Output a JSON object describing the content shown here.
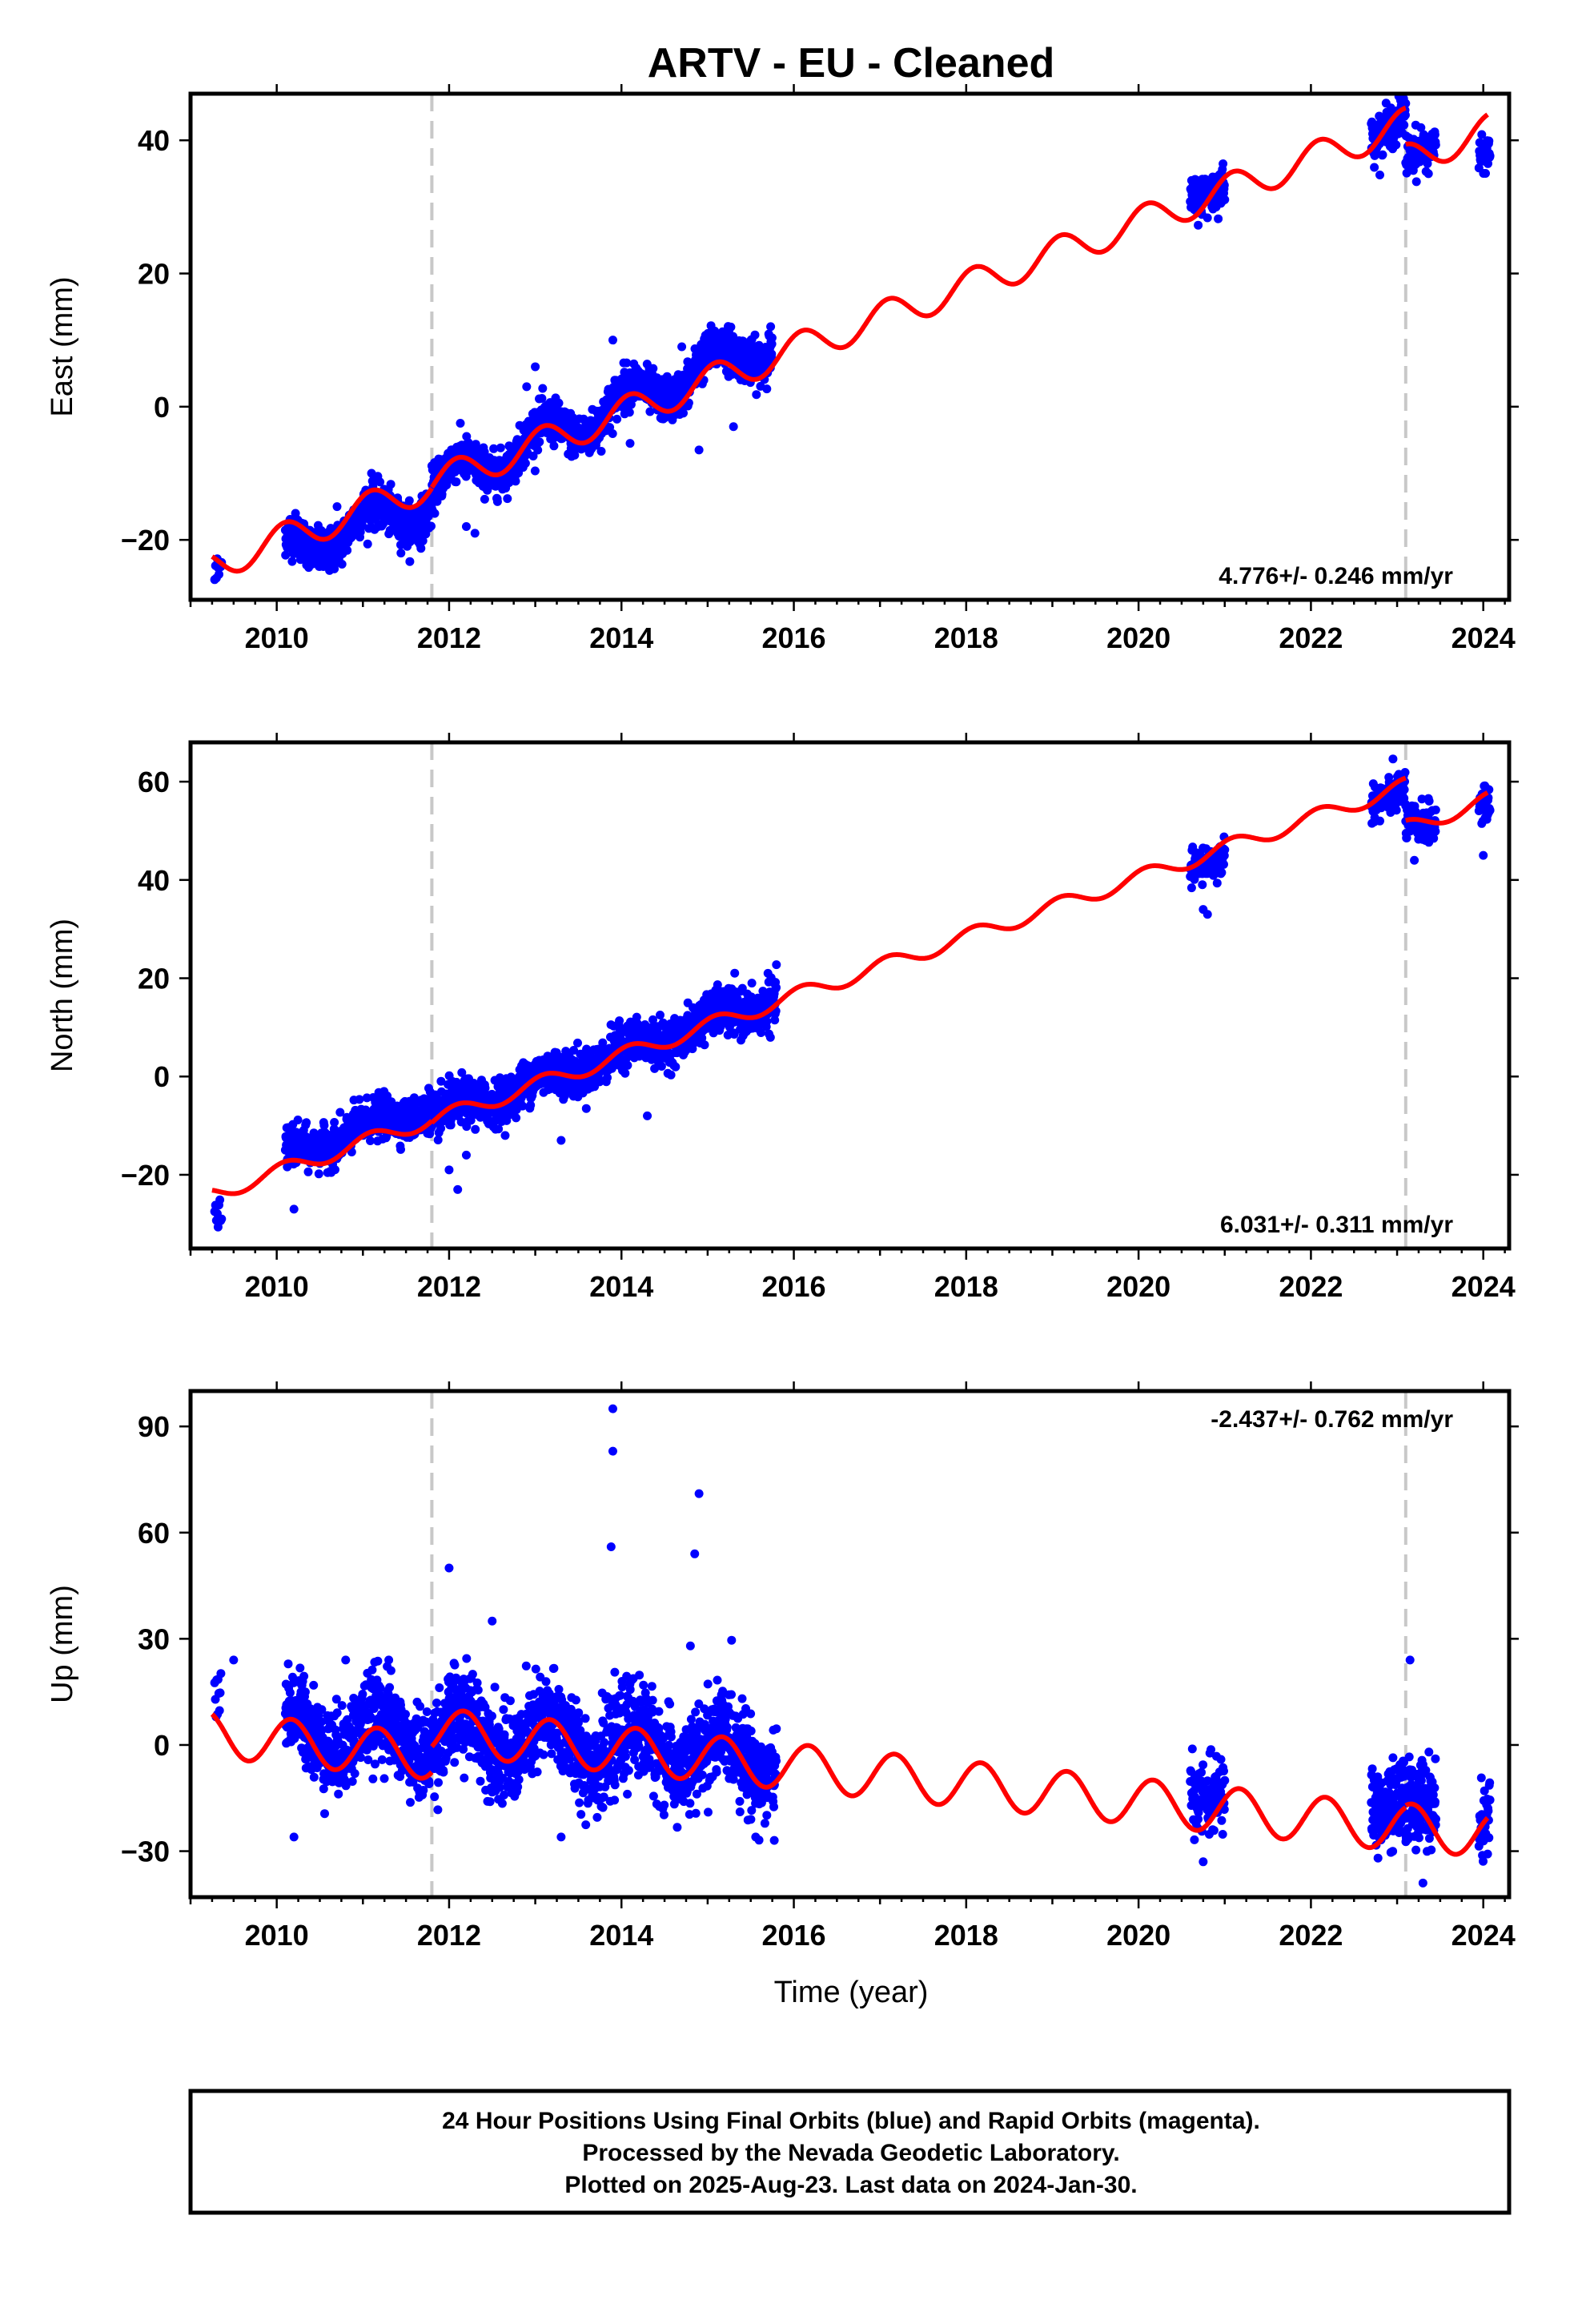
{
  "colors": {
    "data": "#0000ff",
    "model": "#ff0000",
    "step": "#c8c8c8",
    "frame": "#000000"
  },
  "chart_data": [
    {
      "type": "scatter",
      "title": "ARTV  - EU - Cleaned",
      "ylabel": "East (mm)",
      "xlabel": "",
      "xlim": [
        2009.0,
        2024.3
      ],
      "ylim": [
        -29,
        47
      ],
      "xticks": [
        "2010",
        "2012",
        "2014",
        "2016",
        "2018",
        "2020",
        "2022",
        "2024"
      ],
      "yticks": [
        -20,
        0,
        20,
        40
      ],
      "ytick_labels": [
        "−20",
        "0",
        "20",
        "40"
      ],
      "rate_label": "4.776+/- 0.246 mm/yr",
      "rate_position": "bottom-right",
      "step_epochs": [
        2011.8,
        2023.1
      ],
      "series": [
        {
          "kind": "points",
          "segments": [
            {
              "t0": 2009.28,
              "t1": 2009.36,
              "step": 0.01,
              "start": -26.0,
              "rate": 20,
              "amp": 0.5,
              "phase": 0,
              "noise": 1.5
            },
            {
              "t0": 2010.1,
              "t1": 2011.8,
              "step": 0.0028,
              "start": -21.5,
              "rate": 4.2,
              "amp": 2.5,
              "phase": 1.0,
              "noise": 1.6
            },
            {
              "t0": 2011.8,
              "t1": 2015.75,
              "step": 0.0028,
              "start": -12.0,
              "rate": 5.6,
              "amp": 2.5,
              "phase": 1.0,
              "noise": 1.6
            },
            {
              "t0": 2020.6,
              "t1": 2021.0,
              "step": 0.004,
              "start": 31.5,
              "rate": 4.5,
              "amp": 0.5,
              "phase": 0,
              "noise": 1.6
            },
            {
              "t0": 2022.7,
              "t1": 2023.1,
              "step": 0.004,
              "start": 41.5,
              "rate": 4.5,
              "amp": 1.2,
              "phase": 0,
              "noise": 1.6
            },
            {
              "t0": 2023.1,
              "t1": 2023.45,
              "step": 0.004,
              "start": 37.0,
              "rate": 4.0,
              "amp": 1.0,
              "phase": 0,
              "noise": 1.6
            },
            {
              "t0": 2023.95,
              "t1": 2024.08,
              "step": 0.004,
              "start": 37.5,
              "rate": 4.0,
              "amp": 0.5,
              "phase": 0,
              "noise": 1.2
            }
          ],
          "outliers": [
            [
              2010.5,
              -24
            ],
            [
              2011.1,
              -10
            ],
            [
              2012.2,
              -18
            ],
            [
              2012.3,
              -19
            ],
            [
              2013.0,
              6
            ],
            [
              2013.9,
              10
            ],
            [
              2014.1,
              -5.5
            ],
            [
              2014.7,
              9
            ],
            [
              2014.9,
              -6.5
            ],
            [
              2015.3,
              -3
            ],
            [
              2010.7,
              -15
            ],
            [
              2012.9,
              3
            ]
          ]
        },
        {
          "kind": "model",
          "segments": [
            {
              "t0": 2009.25,
              "t1": 2011.8,
              "start": -23.8,
              "rate": 4.776,
              "amp": 2.4,
              "phase": 1.0
            },
            {
              "t0": 2011.8,
              "t1": 2023.1,
              "start": -11.5,
              "rate": 4.776,
              "amp": 2.4,
              "phase": 1.0
            },
            {
              "t0": 2023.1,
              "t1": 2024.05,
              "start": 37.0,
              "rate": 4.776,
              "amp": 2.4,
              "phase": 1.0
            }
          ]
        }
      ]
    },
    {
      "type": "scatter",
      "title": "",
      "ylabel": "North (mm)",
      "xlabel": "",
      "xlim": [
        2009.0,
        2024.3
      ],
      "ylim": [
        -35,
        68
      ],
      "xticks": [
        "2010",
        "2012",
        "2014",
        "2016",
        "2018",
        "2020",
        "2022",
        "2024"
      ],
      "yticks": [
        -20,
        0,
        20,
        40,
        60
      ],
      "ytick_labels": [
        "−20",
        "0",
        "20",
        "40",
        "60"
      ],
      "rate_label": "6.031+/- 0.311 mm/yr",
      "rate_position": "bottom-right",
      "step_epochs": [
        2011.8,
        2023.1
      ],
      "series": [
        {
          "kind": "points",
          "segments": [
            {
              "t0": 2009.28,
              "t1": 2009.36,
              "step": 0.01,
              "start": -29.0,
              "rate": 20,
              "amp": 0.5,
              "phase": 0,
              "noise": 2.0
            },
            {
              "t0": 2010.1,
              "t1": 2011.8,
              "step": 0.0028,
              "start": -16.0,
              "rate": 6.0,
              "amp": 1.5,
              "phase": 1.0,
              "noise": 2.0
            },
            {
              "t0": 2011.8,
              "t1": 2015.8,
              "step": 0.0028,
              "start": -8.5,
              "rate": 6.1,
              "amp": 1.5,
              "phase": 1.0,
              "noise": 2.2
            },
            {
              "t0": 2020.6,
              "t1": 2021.0,
              "step": 0.004,
              "start": 43.0,
              "rate": 4.0,
              "amp": 0.5,
              "phase": 0,
              "noise": 2.0
            },
            {
              "t0": 2022.7,
              "t1": 2023.1,
              "step": 0.004,
              "start": 57.0,
              "rate": 3.0,
              "amp": 1.0,
              "phase": 0,
              "noise": 2.0
            },
            {
              "t0": 2023.1,
              "t1": 2023.45,
              "step": 0.004,
              "start": 50.0,
              "rate": 4.0,
              "amp": 1.0,
              "phase": 0,
              "noise": 2.0
            },
            {
              "t0": 2023.95,
              "t1": 2024.08,
              "step": 0.004,
              "start": 55.0,
              "rate": 4.0,
              "amp": 0.5,
              "phase": 0,
              "noise": 1.6
            }
          ],
          "outliers": [
            [
              2010.2,
              -27
            ],
            [
              2012.0,
              -19
            ],
            [
              2012.1,
              -23
            ],
            [
              2012.2,
              -16
            ],
            [
              2013.3,
              -13
            ],
            [
              2014.3,
              -8
            ],
            [
              2020.8,
              33
            ],
            [
              2020.75,
              34
            ],
            [
              2024.0,
              45
            ],
            [
              2023.2,
              44
            ],
            [
              2022.8,
              52
            ],
            [
              2015.7,
              21
            ]
          ]
        },
        {
          "kind": "model",
          "segments": [
            {
              "t0": 2009.25,
              "t1": 2011.8,
              "start": -24.0,
              "rate": 6.031,
              "amp": 1.6,
              "phase": 1.0
            },
            {
              "t0": 2011.8,
              "t1": 2023.1,
              "start": -9.0,
              "rate": 6.031,
              "amp": 1.6,
              "phase": 1.0
            },
            {
              "t0": 2023.1,
              "t1": 2024.05,
              "start": 50.5,
              "rate": 6.031,
              "amp": 1.6,
              "phase": 1.0
            }
          ]
        }
      ]
    },
    {
      "type": "scatter",
      "title": "",
      "ylabel": "Up (mm)",
      "xlabel": "Time (year)",
      "xlim": [
        2009.0,
        2024.3
      ],
      "ylim": [
        -43,
        100
      ],
      "xticks": [
        "2010",
        "2012",
        "2014",
        "2016",
        "2018",
        "2020",
        "2022",
        "2024"
      ],
      "yticks": [
        -30,
        0,
        30,
        60,
        90
      ],
      "ytick_labels": [
        "−30",
        "0",
        "30",
        "60",
        "90"
      ],
      "rate_label": "-2.437+/- 0.762 mm/yr",
      "rate_position": "top-right",
      "step_epochs": [
        2011.8,
        2023.1
      ],
      "series": [
        {
          "kind": "points",
          "segments": [
            {
              "t0": 2009.28,
              "t1": 2009.36,
              "step": 0.008,
              "start": 14.0,
              "rate": 0,
              "amp": 0,
              "phase": 0,
              "noise": 4.0
            },
            {
              "t0": 2010.1,
              "t1": 2011.8,
              "step": 0.0028,
              "start": 4.0,
              "rate": -1.0,
              "amp": 6.0,
              "phase": 0.5,
              "noise": 6.0
            },
            {
              "t0": 2011.8,
              "t1": 2015.8,
              "step": 0.0028,
              "start": 4.0,
              "rate": -2.0,
              "amp": 6.0,
              "phase": 0.5,
              "noise": 6.5
            },
            {
              "t0": 2020.6,
              "t1": 2021.0,
              "step": 0.004,
              "start": -12.0,
              "rate": -2.0,
              "amp": 3.0,
              "phase": 0,
              "noise": 5.0
            },
            {
              "t0": 2022.7,
              "t1": 2023.45,
              "step": 0.003,
              "start": -15.0,
              "rate": -6.0,
              "amp": 3.0,
              "phase": 0,
              "noise": 6.0
            },
            {
              "t0": 2023.95,
              "t1": 2024.08,
              "step": 0.004,
              "start": -22.0,
              "rate": 0,
              "amp": 1.0,
              "phase": 0,
              "noise": 5.0
            }
          ],
          "outliers": [
            [
              2009.5,
              24
            ],
            [
              2010.2,
              -26
            ],
            [
              2012.0,
              50
            ],
            [
              2012.5,
              35
            ],
            [
              2013.9,
              95
            ],
            [
              2013.9,
              83
            ],
            [
              2013.88,
              56
            ],
            [
              2014.9,
              71
            ],
            [
              2014.85,
              54
            ],
            [
              2014.8,
              28
            ],
            [
              2013.3,
              -26
            ],
            [
              2023.15,
              24
            ],
            [
              2020.75,
              -33
            ],
            [
              2023.3,
              -39
            ],
            [
              2010.8,
              24
            ],
            [
              2011.3,
              24
            ]
          ]
        },
        {
          "kind": "model",
          "segments": [
            {
              "t0": 2009.25,
              "t1": 2011.8,
              "start": 3.0,
              "rate": -2.437,
              "amp": 6.5,
              "phase": 0.5
            },
            {
              "t0": 2011.8,
              "t1": 2023.1,
              "start": 4.0,
              "rate": -2.437,
              "amp": 6.5,
              "phase": 0.5
            },
            {
              "t0": 2023.1,
              "t1": 2024.05,
              "start": -23.0,
              "rate": -2.437,
              "amp": 6.5,
              "phase": 0.5
            }
          ]
        }
      ]
    }
  ],
  "footer": {
    "line1": "24 Hour Positions Using Final Orbits (blue) and Rapid Orbits (magenta).",
    "line2": "Processed by the Nevada Geodetic Laboratory.",
    "line3": "Plotted on 2025-Aug-23. Last data on 2024-Jan-30."
  }
}
